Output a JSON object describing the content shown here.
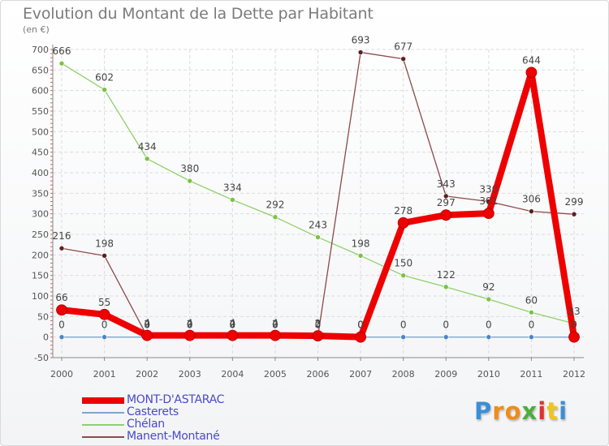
{
  "header": {
    "title": "Evolution du Montant de la Dette par Habitant",
    "subtitle": "(en €)"
  },
  "chart_data": {
    "type": "line",
    "title": "Evolution du Montant de la Dette par Habitant",
    "ylabel": "(en €)",
    "xlabel": "",
    "x": [
      "2000",
      "2001",
      "2002",
      "2003",
      "2004",
      "2005",
      "2006",
      "2007",
      "2008",
      "2009",
      "2010",
      "2011",
      "2012"
    ],
    "ylim": [
      -50,
      700
    ],
    "yticks": [
      -50,
      0,
      50,
      100,
      150,
      200,
      250,
      300,
      350,
      400,
      450,
      500,
      550,
      600,
      650,
      700
    ],
    "grid": true,
    "legend_position": "bottom-left",
    "series": [
      {
        "name": "Chélan",
        "color": "#8fd16a",
        "dot_color": "#7cc242",
        "values": [
          666,
          602,
          434,
          380,
          334,
          292,
          243,
          198,
          150,
          122,
          92,
          60,
          33
        ],
        "labels": [
          "666",
          "602",
          "434",
          "380",
          "334",
          "292",
          "243",
          "198",
          "150",
          "122",
          "92",
          "60",
          "33"
        ]
      },
      {
        "name": "Manent-Montané",
        "color": "#8b4a4a",
        "dot_color": "#5c1f1f",
        "values": [
          216,
          198,
          2,
          2,
          2,
          2,
          2,
          693,
          677,
          343,
          330,
          306,
          299
        ],
        "labels": [
          "216",
          "198",
          "2",
          "2",
          "2",
          "2",
          "2",
          "693",
          "677",
          "343",
          "330",
          "306",
          "299"
        ]
      },
      {
        "name": "Casterets",
        "color": "#7fa6cc",
        "dot_color": "#4a86c5",
        "values": [
          0,
          0,
          0,
          0,
          0,
          0,
          0,
          0,
          0,
          0,
          0,
          0,
          0
        ],
        "labels": [
          "0",
          "0",
          "0",
          "0",
          "0",
          "0",
          "0",
          "0",
          "0",
          "0",
          "0",
          "0",
          "0"
        ]
      },
      {
        "name": "MONT-D'ASTARAC",
        "color": "#ee0000",
        "dot_color": "#ee0000",
        "values": [
          66,
          55,
          4,
          4,
          4,
          4,
          3,
          0,
          278,
          297,
          301,
          644,
          0
        ],
        "labels": [
          "66",
          "55",
          "4",
          "4",
          "4",
          "4",
          "3",
          "0",
          "278",
          "297",
          "301",
          "644",
          "0"
        ]
      }
    ]
  },
  "legend": {
    "items": [
      {
        "label": "MONT-D'ASTARAC",
        "color": "#ee0000",
        "thickness": 8
      },
      {
        "label": "Casterets",
        "color": "#7fa6cc",
        "thickness": 2
      },
      {
        "label": "Chélan",
        "color": "#8fd16a",
        "thickness": 2
      },
      {
        "label": "Manent-Montané",
        "color": "#8b4a4a",
        "thickness": 2
      }
    ]
  },
  "logo": {
    "text": "Proxiti",
    "letters": [
      {
        "ch": "P",
        "color": "#3a8fd8"
      },
      {
        "ch": "r",
        "color": "#f08c1a"
      },
      {
        "ch": "o",
        "color": "#f08c1a"
      },
      {
        "ch": "x",
        "color": "#4cae3b"
      },
      {
        "ch": "i",
        "color": "#e03131"
      },
      {
        "ch": "t",
        "color": "#f0c419"
      },
      {
        "ch": "i",
        "color": "#3a8fd8"
      }
    ]
  }
}
